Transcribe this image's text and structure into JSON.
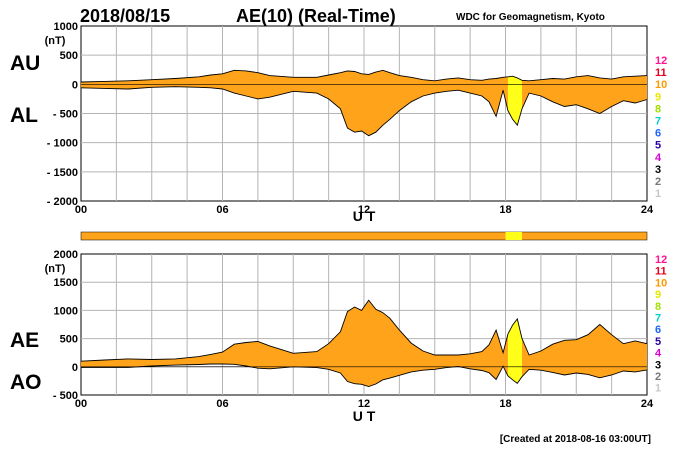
{
  "header": {
    "date": "2018/08/15",
    "title": "AE(10) (Real-Time)",
    "source": "WDC for Geomagnetism, Kyoto"
  },
  "footer": {
    "created": "[Created at 2018-08-16 03:00UT]"
  },
  "legend": {
    "labels": [
      "12",
      "11",
      "10",
      "9",
      "8",
      "7",
      "6",
      "5",
      "4",
      "3",
      "2",
      "1"
    ],
    "colors": [
      "#ff1493",
      "#e6001e",
      "#ff9900",
      "#e8e800",
      "#a0e000",
      "#00cccc",
      "#1e64ff",
      "#2a00a0",
      "#d400d4",
      "#000000",
      "#777777",
      "#c8c8c8"
    ]
  },
  "fill_color": "#ffa31a",
  "highlight_color": "#ffff1a",
  "chart_data": [
    {
      "type": "area",
      "id": "au-al",
      "upper_label": "AU",
      "lower_label": "AL",
      "ylabel": "(nT)",
      "xlabel": "U T",
      "xlim": [
        0,
        24
      ],
      "ylim": [
        -2000,
        1000
      ],
      "x_ticks": [
        0,
        6,
        12,
        18,
        24
      ],
      "x_tick_labels": [
        "00",
        "06",
        "12",
        "18",
        "24"
      ],
      "y_ticks": [
        1000,
        500,
        0,
        -500,
        -1000,
        -1500,
        -2000
      ],
      "y_tick_labels": [
        "1000",
        "500",
        "0",
        "- 500",
        "- 1000",
        "- 1500",
        "- 2000"
      ],
      "x": [
        0,
        1,
        2,
        3,
        4,
        5,
        5.5,
        6,
        6.5,
        7,
        7.5,
        8,
        9,
        10,
        10.5,
        11,
        11.3,
        11.6,
        11.9,
        12.2,
        12.5,
        12.8,
        13.1,
        13.5,
        14,
        14.5,
        15,
        15.5,
        16,
        16.5,
        17,
        17.3,
        17.6,
        17.9,
        18.1,
        18.3,
        18.5,
        18.7,
        19,
        19.5,
        20,
        20.5,
        21,
        21.5,
        22,
        22.5,
        23,
        23.5,
        24
      ],
      "upper": [
        40,
        50,
        60,
        80,
        100,
        130,
        160,
        180,
        240,
        230,
        200,
        150,
        120,
        120,
        160,
        200,
        230,
        220,
        180,
        170,
        210,
        240,
        200,
        150,
        120,
        80,
        60,
        90,
        110,
        80,
        70,
        90,
        100,
        120,
        130,
        140,
        110,
        70,
        60,
        80,
        100,
        90,
        130,
        150,
        110,
        90,
        130,
        140,
        150
      ],
      "lower": [
        -60,
        -70,
        -80,
        -50,
        -40,
        -50,
        -60,
        -80,
        -150,
        -200,
        -250,
        -220,
        -120,
        -150,
        -250,
        -420,
        -750,
        -820,
        -800,
        -880,
        -820,
        -700,
        -600,
        -450,
        -300,
        -200,
        -150,
        -120,
        -100,
        -150,
        -200,
        -300,
        -550,
        -100,
        -450,
        -600,
        -700,
        -420,
        -150,
        -200,
        -300,
        -380,
        -350,
        -420,
        -500,
        -380,
        -280,
        -320,
        -260
      ],
      "highlight_x": [
        18.0,
        18.7
      ]
    },
    {
      "type": "area",
      "id": "ae-ao",
      "upper_label": "AE",
      "lower_label": "AO",
      "ylabel": "(nT)",
      "xlabel": "U T",
      "xlim": [
        0,
        24
      ],
      "ylim": [
        -500,
        2000
      ],
      "x_ticks": [
        0,
        6,
        12,
        18,
        24
      ],
      "x_tick_labels": [
        "00",
        "06",
        "12",
        "18",
        "24"
      ],
      "y_ticks": [
        2000,
        1500,
        1000,
        500,
        0,
        -500
      ],
      "y_tick_labels": [
        "2000",
        "1500",
        "1000",
        "500",
        "0",
        "- 500"
      ],
      "x": [
        0,
        1,
        2,
        3,
        4,
        5,
        5.5,
        6,
        6.5,
        7,
        7.5,
        8,
        9,
        10,
        10.5,
        11,
        11.3,
        11.6,
        11.9,
        12.2,
        12.5,
        12.8,
        13.1,
        13.5,
        14,
        14.5,
        15,
        15.5,
        16,
        16.5,
        17,
        17.3,
        17.6,
        17.9,
        18.1,
        18.3,
        18.5,
        18.7,
        19,
        19.5,
        20,
        20.5,
        21,
        21.5,
        22,
        22.5,
        23,
        23.5,
        24
      ],
      "upper": [
        100,
        120,
        140,
        130,
        140,
        180,
        220,
        260,
        400,
        430,
        450,
        370,
        240,
        270,
        410,
        620,
        980,
        1060,
        1000,
        1180,
        1020,
        960,
        860,
        650,
        420,
        280,
        210,
        210,
        210,
        230,
        270,
        390,
        650,
        250,
        580,
        740,
        850,
        500,
        210,
        280,
        400,
        470,
        480,
        570,
        750,
        570,
        410,
        460,
        410
      ],
      "lower": [
        -10,
        -10,
        -10,
        15,
        30,
        40,
        50,
        50,
        45,
        15,
        -25,
        -35,
        0,
        -15,
        -45,
        -110,
        -260,
        -300,
        -310,
        -350,
        -305,
        -230,
        -200,
        -150,
        -90,
        -60,
        -45,
        -15,
        5,
        -35,
        -65,
        -105,
        -225,
        10,
        -160,
        -230,
        -295,
        -175,
        -45,
        -60,
        -100,
        -145,
        -110,
        -135,
        -195,
        -145,
        -75,
        -90,
        -55
      ],
      "highlight_x": [
        18.0,
        18.7
      ]
    }
  ]
}
